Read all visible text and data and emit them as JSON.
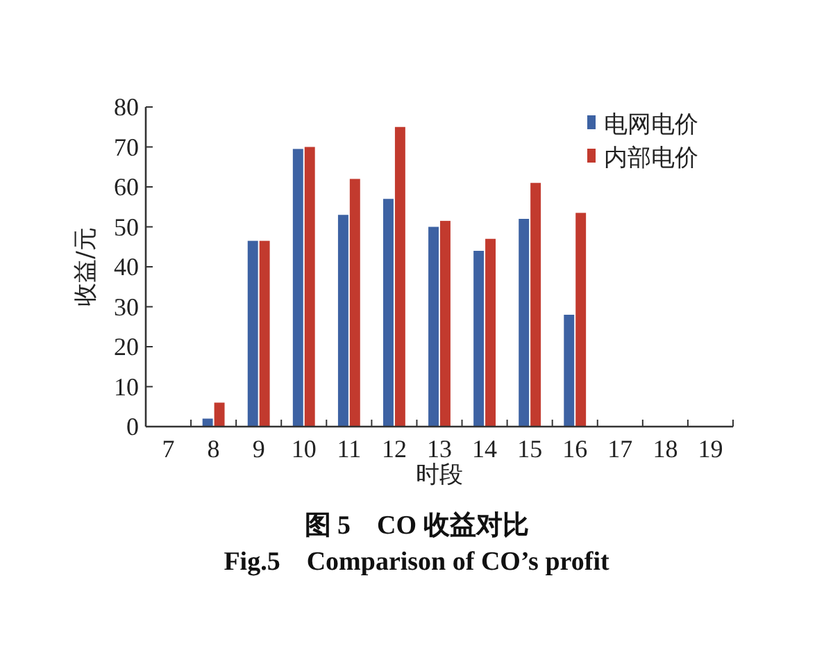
{
  "chart_data": {
    "type": "bar",
    "title": "图 5　CO 收益对比",
    "subtitle": "Fig.5　Comparison of CO’s profit",
    "xlabel": "时段",
    "ylabel": "收益/元",
    "categories": [
      "7",
      "8",
      "9",
      "10",
      "11",
      "12",
      "13",
      "14",
      "15",
      "16",
      "17",
      "18",
      "19"
    ],
    "series": [
      {
        "name": "电网电价",
        "color": "#3d62a3",
        "values": [
          0,
          2,
          46.5,
          69.5,
          53,
          57,
          50,
          44,
          52,
          28,
          0,
          0,
          0
        ]
      },
      {
        "name": "内部电价",
        "color": "#c23a2e",
        "values": [
          0,
          6,
          46.5,
          70,
          62,
          75,
          51.5,
          47,
          61,
          53.5,
          0,
          0,
          0
        ]
      }
    ],
    "ylim": [
      0,
      80
    ],
    "yticks": [
      0,
      10,
      20,
      30,
      40,
      50,
      60,
      70,
      80
    ],
    "grid": false,
    "legend": "top right"
  }
}
